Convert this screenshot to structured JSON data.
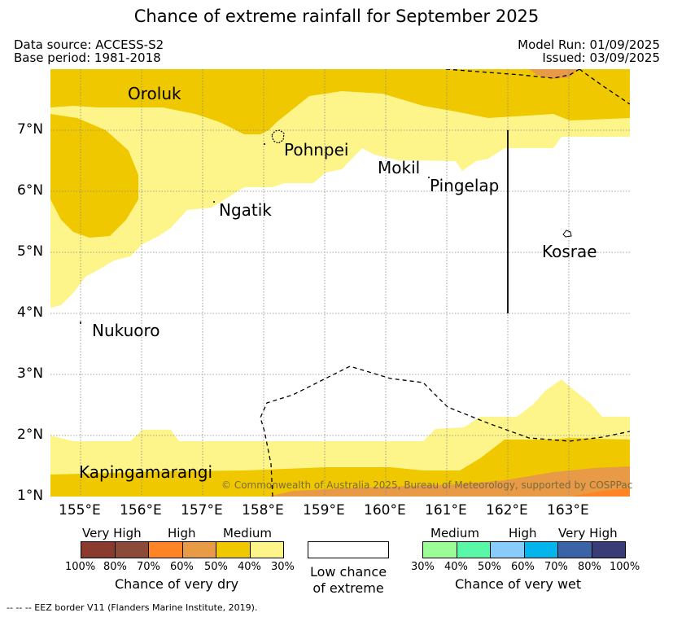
{
  "title": "Chance of extreme rainfall for September 2025",
  "meta": {
    "data_source": "Data source: ACCESS-S2",
    "base_period": "Base period: 1981-2018",
    "model_run": "Model Run: 01/09/2025",
    "issued": "Issued: 03/09/2025"
  },
  "axes": {
    "x_ticks": [
      "155°E",
      "156°E",
      "157°E",
      "158°E",
      "159°E",
      "160°E",
      "161°E",
      "162°E",
      "163°E"
    ],
    "y_ticks": [
      "7°N",
      "6°N",
      "5°N",
      "4°N",
      "3°N",
      "2°N",
      "1°N"
    ]
  },
  "places": {
    "oroluk": "Oroluk",
    "pohnpei": "Pohnpei",
    "mokil": "Mokil",
    "pingelap": "Pingelap",
    "ngatik": "Ngatik",
    "kosrae": "Kosrae",
    "nukuoro": "Nukuoro",
    "kapingamarangi": "Kapingamarangi"
  },
  "copyright": "© Commonwealth of Australia 2025, Bureau of Meteorology, supported by COSPPac",
  "legend_dry": {
    "headers": [
      "Very High",
      "High",
      "Medium"
    ],
    "colors": [
      "#8b3a2e",
      "#8c4a38",
      "#ff8426",
      "#e89a46",
      "#f0c800",
      "#fdf58a"
    ],
    "percents": [
      "100%",
      "80%",
      "70%",
      "60%",
      "50%",
      "40%",
      "30%"
    ],
    "caption": "Chance of very dry"
  },
  "legend_low": {
    "caption_line1": "Low chance",
    "caption_line2": "of extreme"
  },
  "legend_wet": {
    "headers": [
      "Medium",
      "High",
      "Very High"
    ],
    "colors": [
      "#9cfc96",
      "#58f8a8",
      "#88ccfc",
      "#04b4ec",
      "#3a64a6",
      "#3a3c78"
    ],
    "percents": [
      "30%",
      "40%",
      "50%",
      "60%",
      "70%",
      "80%",
      "100%"
    ],
    "caption": "Chance of very wet"
  },
  "footer": "--  --  -- EEZ border V11 (Flanders Marine Institute, 2019).",
  "colors": {
    "medium_dry": "#f0c800",
    "low_medium_dry": "#fdf58a",
    "high_dry": "#e89a46",
    "very_high_dry": "#ff8426"
  }
}
